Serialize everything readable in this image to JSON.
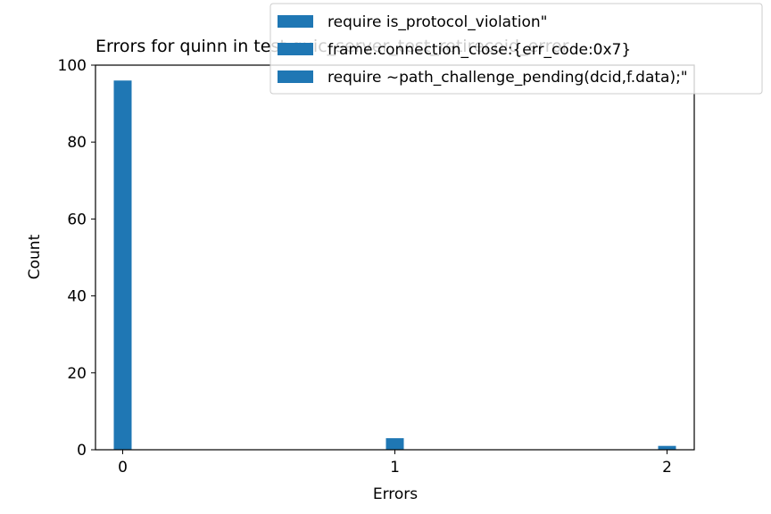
{
  "chart_data": {
    "type": "bar",
    "title": "Errors for quinn in test quic_server_test_retirecoid_error",
    "xlabel": "Errors",
    "ylabel": "Count",
    "x_ticks": [
      "0",
      "1",
      "2"
    ],
    "y_ticks": [
      "0",
      "20",
      "40",
      "60",
      "80",
      "100"
    ],
    "xlim": [
      -0.1,
      2.1
    ],
    "ylim": [
      0,
      100
    ],
    "grid": false,
    "legend_position": "top-right",
    "series": [
      {
        "name": "require is_protocol_violation\"",
        "color": "#1f77b4",
        "points": [
          {
            "x": 0,
            "y": 96
          }
        ]
      },
      {
        "name": "frame.connection_close:{err_code:0x7}",
        "color": "#1f77b4",
        "points": [
          {
            "x": 1,
            "y": 3
          }
        ]
      },
      {
        "name": "require ~path_challenge_pending(dcid,f.data);\"",
        "color": "#1f77b4",
        "points": [
          {
            "x": 2,
            "y": 1
          }
        ]
      }
    ]
  }
}
